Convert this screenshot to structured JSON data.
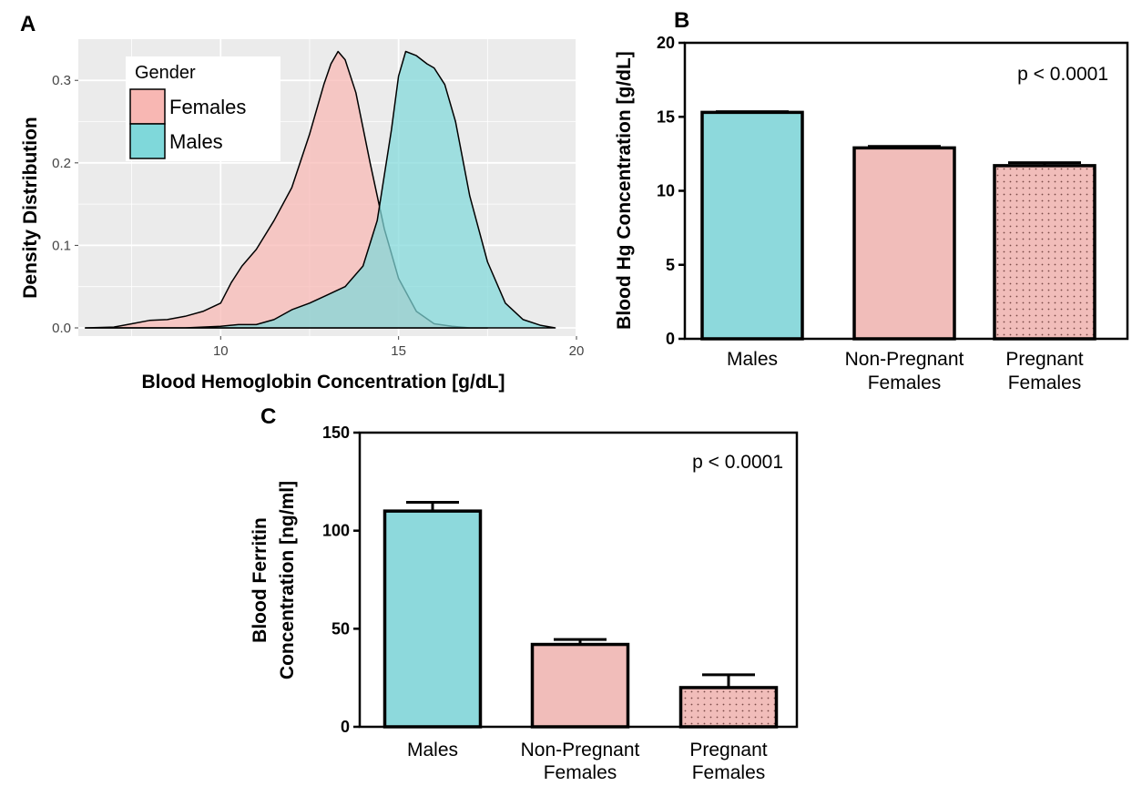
{
  "colors": {
    "females": "#F8B7B3",
    "males": "#7FD8DA",
    "bar_males": "#8DD9DC",
    "bar_females": "#F1BDBA",
    "panel_bg": "#EBEBEB",
    "grid": "#FFFFFF"
  },
  "chart_data": [
    {
      "panel": "A",
      "type": "area",
      "xlabel": "Blood Hemoglobin Concentration [g/dL]",
      "ylabel": "Density Distribution",
      "xlim": [
        6,
        20
      ],
      "ylim": [
        0,
        0.34
      ],
      "xticks": [
        "10",
        "15",
        "20"
      ],
      "yticks": [
        "0.0",
        "0.1",
        "0.2",
        "0.3"
      ],
      "grid": true,
      "legend": {
        "title": "Gender",
        "placement": "top-left",
        "entries": [
          "Females",
          "Males"
        ]
      },
      "series": [
        {
          "name": "Females",
          "x": [
            6.2,
            7.0,
            7.5,
            8.0,
            8.5,
            9.0,
            9.5,
            10.0,
            10.3,
            10.6,
            11.0,
            11.5,
            12.0,
            12.5,
            12.9,
            13.1,
            13.3,
            13.5,
            13.8,
            14.2,
            14.6,
            15.0,
            15.5,
            16.0,
            16.5,
            17.0,
            17.5
          ],
          "y": [
            0.0,
            0.001,
            0.005,
            0.009,
            0.01,
            0.014,
            0.02,
            0.03,
            0.055,
            0.075,
            0.095,
            0.13,
            0.17,
            0.235,
            0.295,
            0.32,
            0.335,
            0.325,
            0.285,
            0.2,
            0.12,
            0.06,
            0.02,
            0.005,
            0.002,
            0.0,
            0.0
          ]
        },
        {
          "name": "Males",
          "x": [
            6.2,
            8.0,
            9.0,
            10.0,
            10.5,
            11.0,
            11.5,
            12.0,
            12.5,
            13.0,
            13.5,
            14.0,
            14.4,
            14.8,
            15.0,
            15.2,
            15.5,
            15.8,
            16.0,
            16.3,
            16.6,
            17.0,
            17.5,
            18.0,
            18.5,
            19.0,
            19.4
          ],
          "y": [
            0.0,
            0.0,
            0.0,
            0.002,
            0.004,
            0.004,
            0.01,
            0.022,
            0.03,
            0.04,
            0.05,
            0.075,
            0.13,
            0.24,
            0.305,
            0.335,
            0.33,
            0.32,
            0.315,
            0.295,
            0.25,
            0.16,
            0.08,
            0.03,
            0.01,
            0.003,
            0.0
          ]
        }
      ]
    },
    {
      "panel": "B",
      "type": "bar",
      "ylabel": "Blood Hg Concentration [g/dL]",
      "ylim": [
        0,
        20
      ],
      "yticks": [
        "0",
        "5",
        "10",
        "15",
        "20"
      ],
      "annotation": "p < 0.0001",
      "categories": [
        [
          "Males"
        ],
        [
          "Non-Pregnant",
          "Females"
        ],
        [
          "Pregnant",
          "Females"
        ]
      ],
      "values": [
        15.3,
        12.9,
        11.7
      ],
      "errors": [
        0.05,
        0.1,
        0.2
      ]
    },
    {
      "panel": "C",
      "type": "bar",
      "ylabel_lines": [
        "Blood Ferritin",
        "Concentration [ng/ml]"
      ],
      "ylim": [
        0,
        150
      ],
      "yticks": [
        "0",
        "50",
        "100",
        "150"
      ],
      "annotation": "p < 0.0001",
      "categories": [
        [
          "Males"
        ],
        [
          "Non-Pregnant",
          "Females"
        ],
        [
          "Pregnant",
          "Females"
        ]
      ],
      "values": [
        110,
        42,
        20
      ],
      "errors": [
        4.5,
        2.5,
        6.5
      ]
    }
  ]
}
